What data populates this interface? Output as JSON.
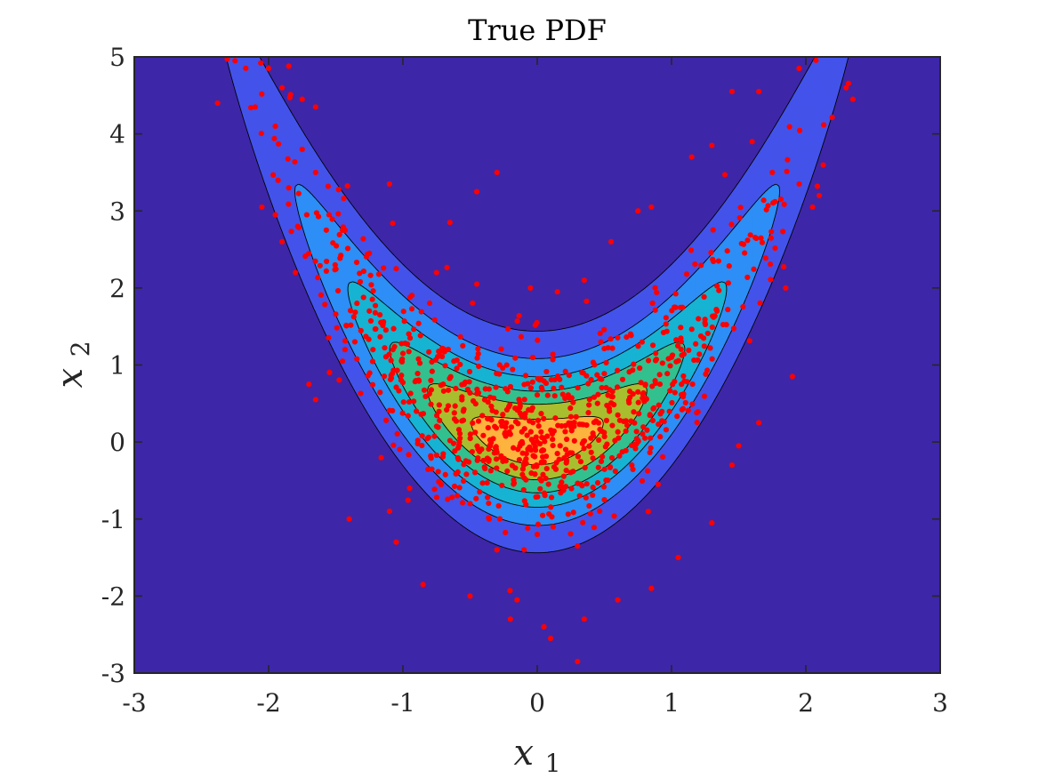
{
  "chart_data": {
    "type": "contour",
    "title": "True PDF",
    "xlabel": {
      "base": "x",
      "sub": "1"
    },
    "ylabel": {
      "base": "x",
      "sub": "2"
    },
    "xlim": [
      -3,
      3
    ],
    "ylim": [
      -3,
      5
    ],
    "xticks": [
      "-3",
      "-2",
      "-1",
      "0",
      "1",
      "2",
      "3"
    ],
    "yticks": [
      "-3",
      "-2",
      "-1",
      "0",
      "1",
      "2",
      "3",
      "4",
      "5"
    ],
    "xtick_values": [
      -3,
      -2,
      -1,
      0,
      1,
      2,
      3
    ],
    "ytick_values": [
      -3,
      -2,
      -1,
      0,
      1,
      2,
      3,
      4,
      5
    ],
    "density": {
      "form": "banana",
      "curvature": 1.0,
      "sigma_x1": 1.0,
      "sigma_x2": 0.6
    },
    "contour_levels": [
      0.015,
      0.052,
      0.098,
      0.145,
      0.19,
      0.235,
      0.28
    ],
    "contour_colors": [
      "#3e26a8",
      "#4353ea",
      "#2d8ef6",
      "#17b3d3",
      "#33c08f",
      "#a8be2e",
      "#fdb43e",
      "#f8fa0d"
    ],
    "scatter": {
      "color": "#ff0000",
      "count": 1000,
      "points": [
        [
          -2.25,
          4.95
        ],
        [
          -2.0,
          4.85
        ],
        [
          -1.85,
          4.88
        ],
        [
          -2.38,
          4.4
        ],
        [
          -2.1,
          4.35
        ],
        [
          -1.9,
          4.6
        ],
        [
          -1.75,
          4.45
        ],
        [
          -1.65,
          4.35
        ],
        [
          -1.95,
          4.1
        ],
        [
          -1.75,
          3.8
        ],
        [
          -1.65,
          3.5
        ],
        [
          -1.85,
          3.3
        ],
        [
          -2.05,
          3.05
        ],
        [
          -1.95,
          2.95
        ],
        [
          -1.9,
          2.6
        ],
        [
          -1.8,
          2.2
        ],
        [
          -1.55,
          2.95
        ],
        [
          -1.45,
          2.75
        ],
        [
          -1.25,
          2.45
        ],
        [
          -1.05,
          2.25
        ],
        [
          -0.75,
          2.2
        ],
        [
          -0.45,
          2.05
        ],
        [
          -1.45,
          1.05
        ],
        [
          -1.7,
          0.75
        ],
        [
          -1.65,
          0.55
        ],
        [
          -1.4,
          -1.0
        ],
        [
          -1.1,
          -0.9
        ],
        [
          -1.05,
          -1.3
        ],
        [
          -0.85,
          -1.85
        ],
        [
          -0.5,
          -2.0
        ],
        [
          -0.15,
          -2.05
        ],
        [
          -0.2,
          -2.3
        ],
        [
          0.05,
          -2.4
        ],
        [
          0.1,
          -2.55
        ],
        [
          0.3,
          -2.85
        ],
        [
          0.35,
          -2.3
        ],
        [
          0.6,
          -2.05
        ],
        [
          0.85,
          -1.9
        ],
        [
          1.05,
          -1.5
        ],
        [
          1.3,
          -1.05
        ],
        [
          1.45,
          -0.3
        ],
        [
          1.5,
          -0.05
        ],
        [
          1.65,
          0.25
        ],
        [
          1.9,
          0.85
        ],
        [
          1.85,
          2.0
        ],
        [
          2.05,
          3.05
        ],
        [
          2.1,
          3.2
        ],
        [
          1.95,
          3.35
        ],
        [
          1.75,
          3.5
        ],
        [
          1.6,
          3.9
        ],
        [
          1.45,
          4.55
        ],
        [
          1.65,
          4.55
        ],
        [
          1.95,
          4.85
        ],
        [
          2.3,
          4.6
        ],
        [
          2.35,
          4.45
        ],
        [
          1.3,
          3.85
        ],
        [
          1.15,
          3.7
        ],
        [
          0.85,
          3.05
        ],
        [
          0.75,
          3.0
        ],
        [
          0.55,
          2.6
        ],
        [
          0.35,
          2.1
        ],
        [
          0.15,
          1.95
        ],
        [
          -0.05,
          2.0
        ],
        [
          -0.3,
          3.5
        ],
        [
          -0.45,
          3.25
        ],
        [
          -0.65,
          2.85
        ],
        [
          -1.1,
          3.35
        ],
        [
          0.05,
          0.05
        ],
        [
          0.15,
          -0.15
        ],
        [
          -0.2,
          0.1
        ],
        [
          0.25,
          0.2
        ],
        [
          -0.1,
          -0.3
        ],
        [
          0.4,
          0.05
        ],
        [
          -0.35,
          -0.05
        ],
        [
          0.6,
          0.35
        ],
        [
          -0.55,
          0.4
        ],
        [
          0.75,
          0.65
        ],
        [
          -0.7,
          0.75
        ],
        [
          1.0,
          1.1
        ],
        [
          -1.0,
          1.15
        ],
        [
          1.2,
          1.6
        ],
        [
          -1.25,
          1.7
        ],
        [
          0.5,
          -0.75
        ],
        [
          -0.5,
          -0.8
        ],
        [
          0.9,
          -0.55
        ],
        [
          -0.95,
          -0.6
        ],
        [
          0.0,
          -1.2
        ],
        [
          0.3,
          -1.35
        ],
        [
          -0.3,
          -1.4
        ],
        [
          1.35,
          2.35
        ]
      ]
    }
  }
}
